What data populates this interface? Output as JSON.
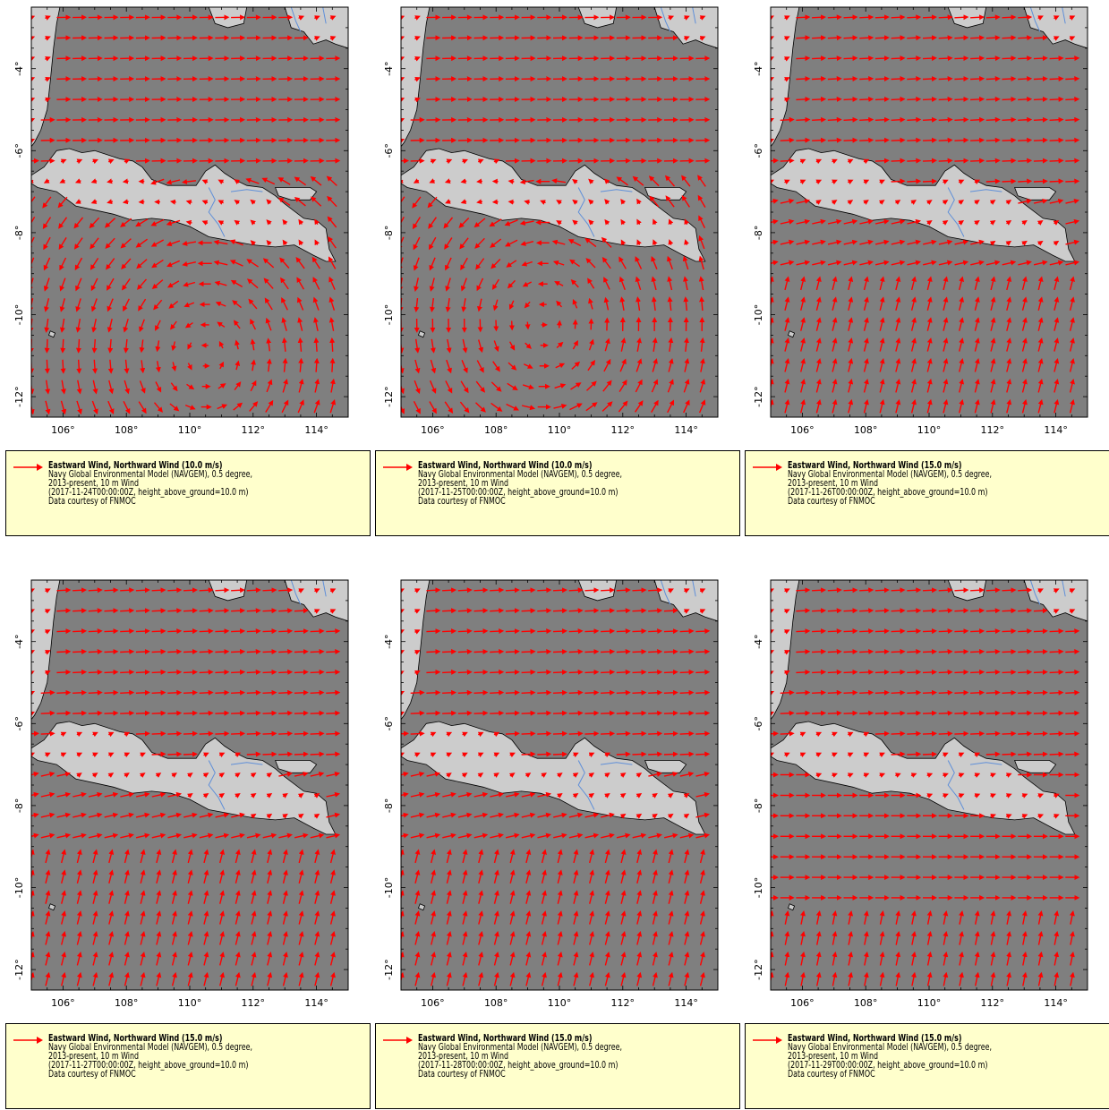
{
  "panels": [
    {
      "wind_title": "Eastward Wind, Northward Wind (10.0 m/s)",
      "model_line1": "Navy Global Environmental Model (NAVGEM), 0.5 degree,",
      "model_line2": "2013-present, 10 m Wind",
      "time_line": "(2017-11-24T00:00:00Z, height_above_ground=10.0 m)",
      "credit": "Data courtesy of FNMOC",
      "pattern": {
        "type": "cyclone",
        "cx": 110.5,
        "cy": -11.0,
        "dir": "ccw"
      }
    },
    {
      "wind_title": "Eastward Wind, Northward Wind (10.0 m/s)",
      "model_line1": "Navy Global Environmental Model (NAVGEM), 0.5 degree,",
      "model_line2": "2013-present, 10 m Wind",
      "time_line": "(2017-11-25T00:00:00Z, height_above_ground=10.0 m)",
      "credit": "Data courtesy of FNMOC",
      "pattern": {
        "type": "cyclone",
        "cx": 109.5,
        "cy": -10.2,
        "dir": "ccw"
      }
    },
    {
      "wind_title": "Eastward Wind, Northward Wind (15.0 m/s)",
      "model_line1": "Navy Global Environmental Model (NAVGEM), 0.5 degree,",
      "model_line2": "2013-present, 10 m Wind",
      "time_line": "(2017-11-26T00:00:00Z, height_above_ground=10.0 m)",
      "credit": "Data courtesy of FNMOC",
      "pattern": {
        "type": "westerly"
      }
    },
    {
      "wind_title": "Eastward Wind, Northward Wind (15.0 m/s)",
      "model_line1": "Navy Global Environmental Model (NAVGEM), 0.5 degree,",
      "model_line2": "2013-present, 10 m Wind",
      "time_line": "(2017-11-27T00:00:00Z, height_above_ground=10.0 m)",
      "credit": "Data courtesy of FNMOC",
      "pattern": {
        "type": "westerly"
      }
    },
    {
      "wind_title": "Eastward Wind, Northward Wind (15.0 m/s)",
      "model_line1": "Navy Global Environmental Model (NAVGEM), 0.5 degree,",
      "model_line2": "2013-present, 10 m Wind",
      "time_line": "(2017-11-28T00:00:00Z, height_above_ground=10.0 m)",
      "credit": "Data courtesy of FNMOC",
      "pattern": {
        "type": "westerly"
      }
    },
    {
      "wind_title": "Eastward Wind, Northward Wind (15.0 m/s)",
      "model_line1": "Navy Global Environmental Model (NAVGEM), 0.5 degree,",
      "model_line2": "2013-present, 10 m Wind",
      "time_line": "(2017-11-29T00:00:00Z, height_above_ground=10.0 m)",
      "credit": "Data courtesy of FNMOC",
      "pattern": {
        "type": "jet"
      }
    }
  ],
  "axes": {
    "lon_ticks": [
      "106°",
      "108°",
      "110°",
      "112°",
      "114°"
    ],
    "lat_ticks": [
      "-4°",
      "-6°",
      "-8°",
      "-10°",
      "-12°"
    ],
    "lon_values": [
      106,
      108,
      110,
      112,
      114
    ],
    "lat_values": [
      -4,
      -6,
      -8,
      -10,
      -12
    ],
    "lon_range": [
      105,
      115
    ],
    "lat_range": [
      -12.5,
      -2.5
    ]
  },
  "colors": {
    "ocean": "#7f7f7f",
    "land": "#cccccc",
    "coast": "#000000",
    "river": "#5f8fd8",
    "arrow": "#ff0000",
    "legend_bg": "#ffffcc"
  }
}
